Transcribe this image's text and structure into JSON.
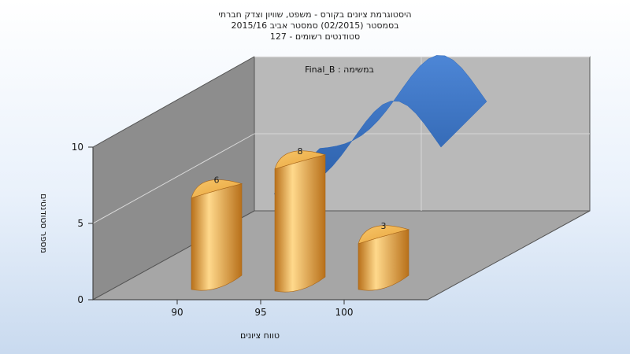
{
  "chart_data": {
    "type": "bar",
    "title_lines": [
      "היסטוגרמת ציונים בקורס - משפט, שוויון וצדק חברתי",
      "בסמסטר  (02/2015)  סמסטר אביב 2015/16",
      "סטודנטים רשומים - 127"
    ],
    "categories": [
      "90",
      "95",
      "100"
    ],
    "values": [
      6,
      8,
      3
    ],
    "ylabel": "מספר סטודנטים",
    "xlabel": "טווח ציונים",
    "ylim": [
      0,
      10
    ],
    "yticks": [
      "0",
      "5",
      "10"
    ],
    "legend_label": "במשימה : Final_B",
    "legend_position": "top-center",
    "curve": "normal-distribution",
    "grid": true,
    "three_d": true,
    "colors": {
      "bar": "#e8a33a",
      "bar_light": "#ffd98c",
      "bar_dark": "#b8701a",
      "curve": "#2f68b8",
      "back_wall": "#b9b9b9",
      "side_wall": "#8d8d8d",
      "floor": "#a6a6a6"
    }
  }
}
